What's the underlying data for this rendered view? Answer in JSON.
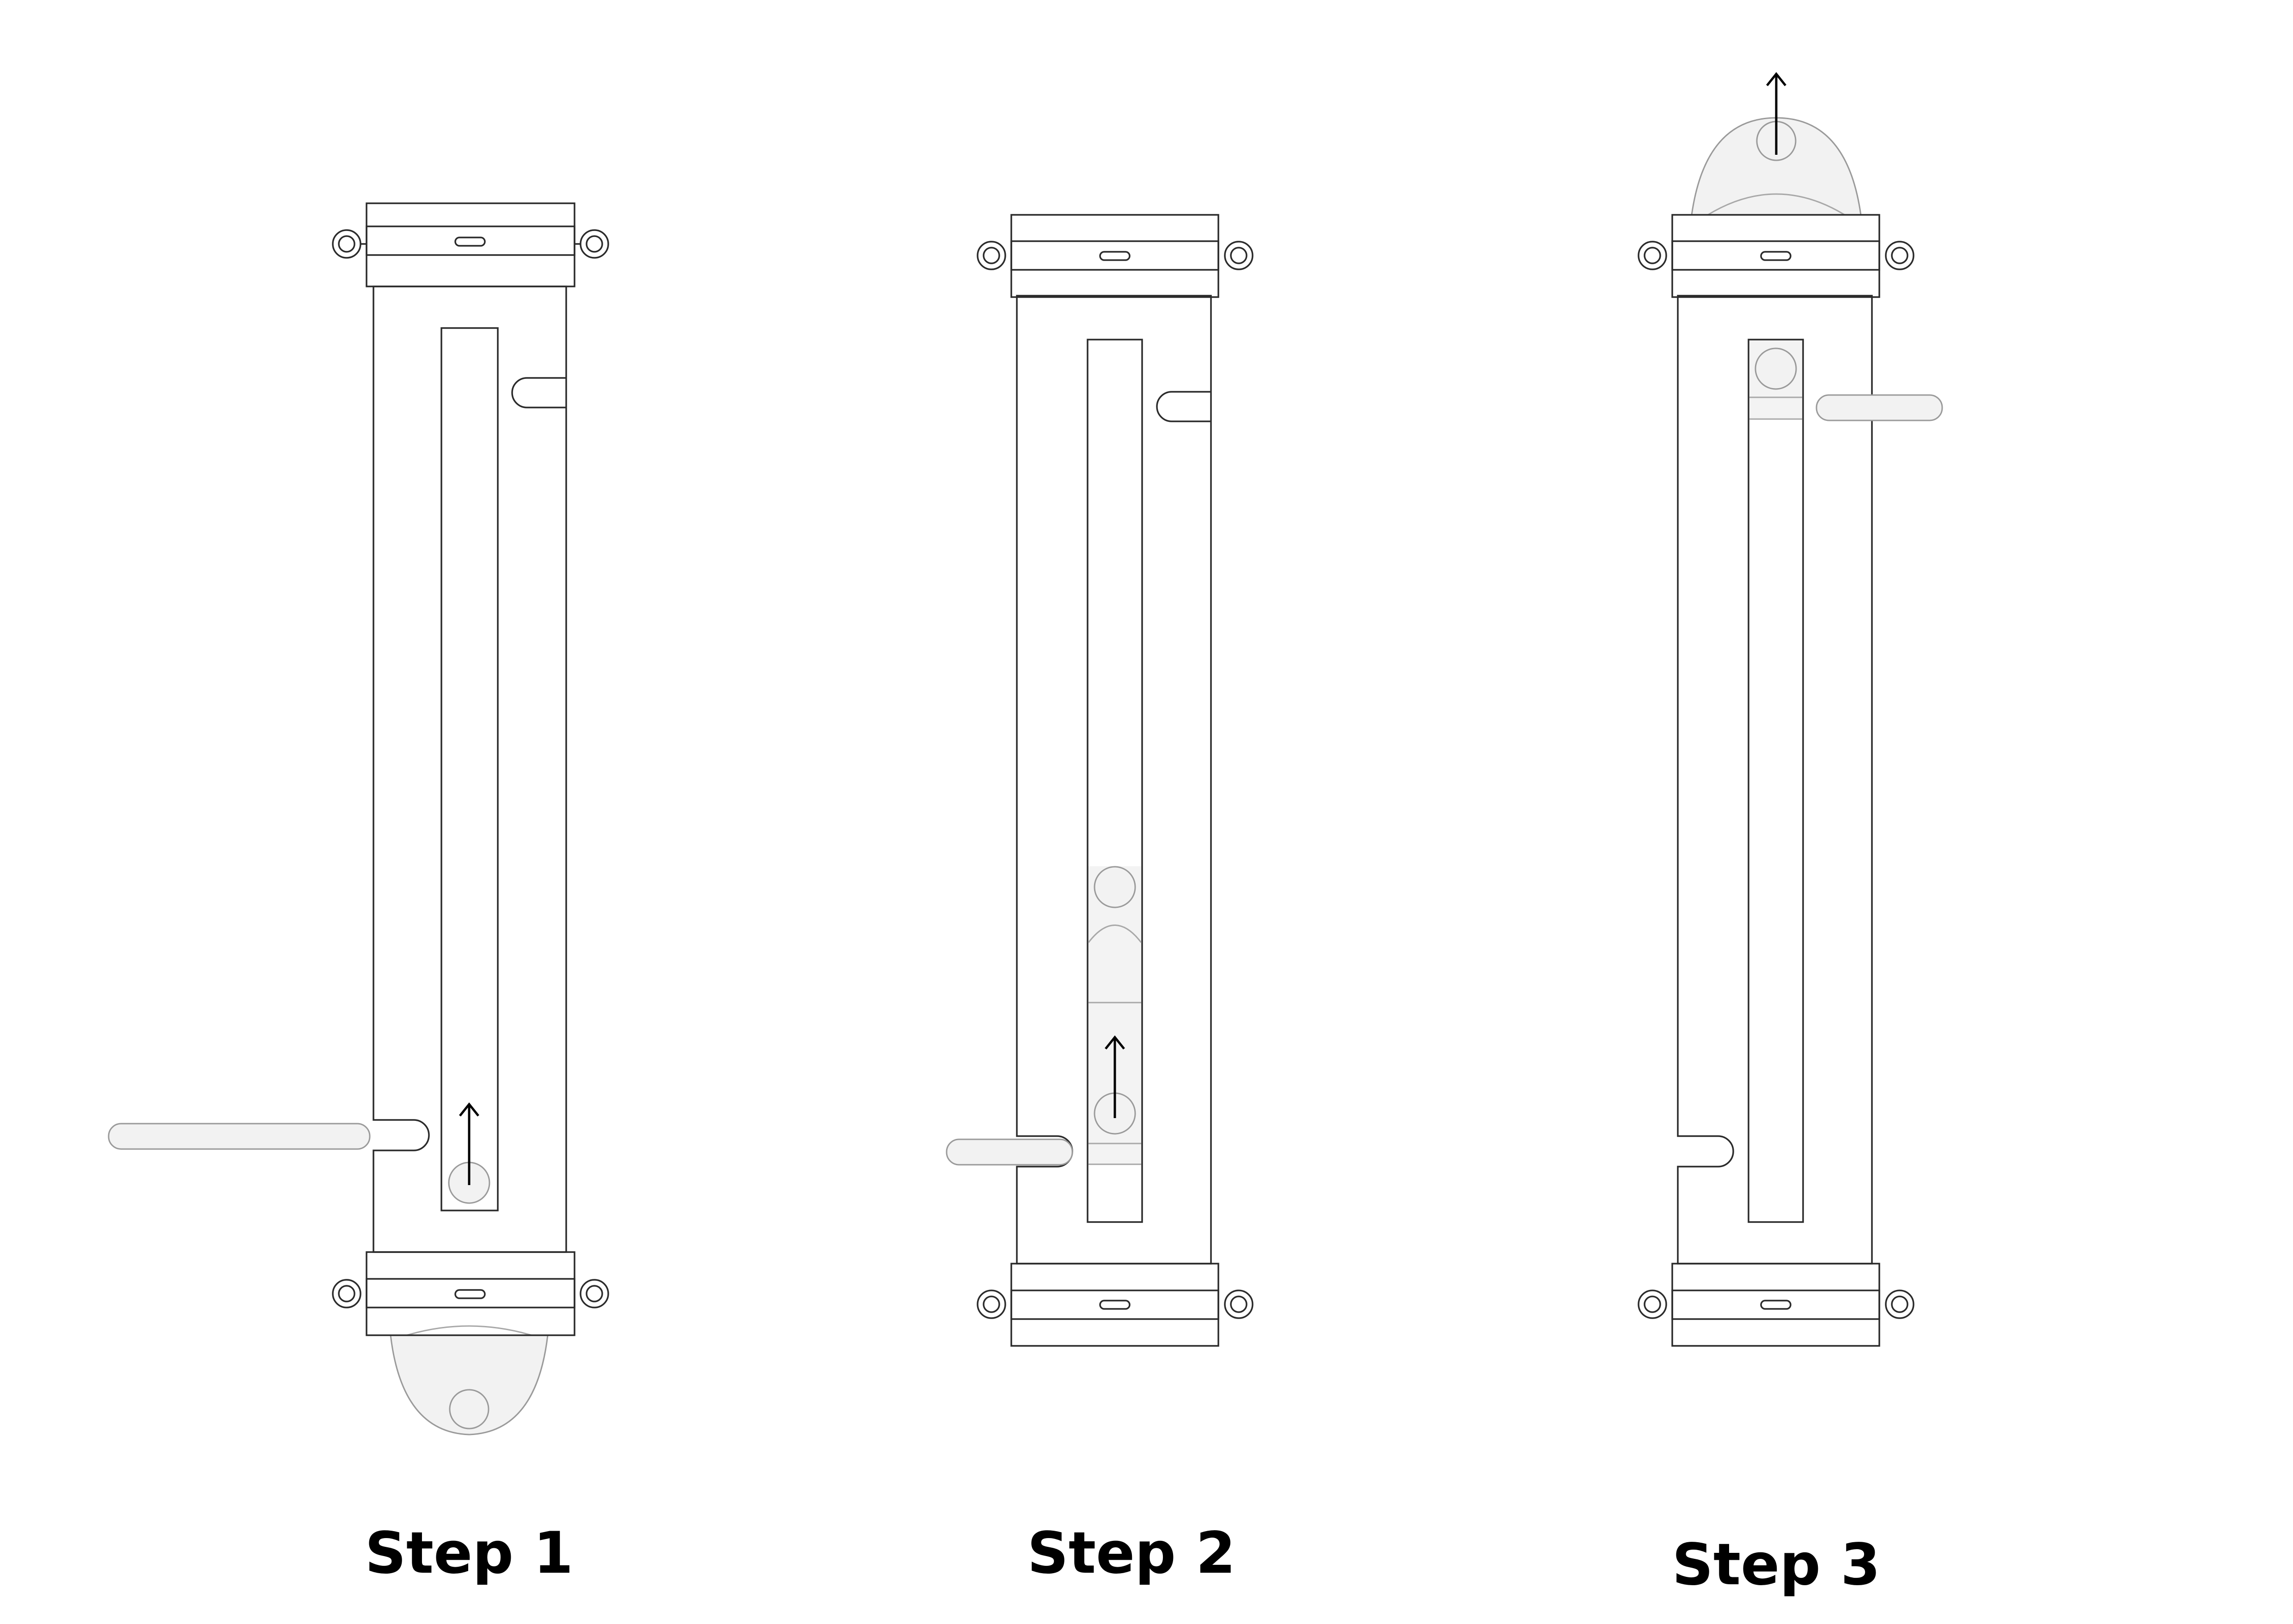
{
  "diagram": {
    "steps": [
      {
        "label": "Step 1"
      },
      {
        "label": "Step 2"
      },
      {
        "label": "Step 3"
      }
    ]
  }
}
